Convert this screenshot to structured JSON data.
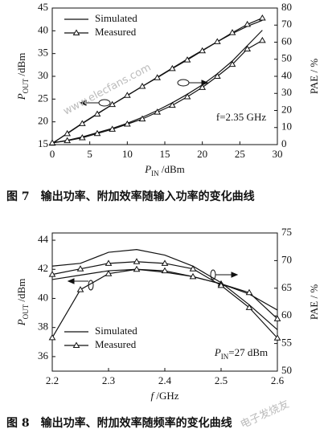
{
  "chart_data": [
    {
      "type": "line",
      "caption": "图 7　输出功率、附加效率随输入功率的变化曲线",
      "x_label": [
        "P",
        "IN",
        " /dBm"
      ],
      "y_label": [
        "P",
        "OUT",
        " /dBm"
      ],
      "y2_label": "PAE / %",
      "annotation": "f=2.35 GHz",
      "legend": "upper left",
      "xlim": [
        0,
        30
      ],
      "xticks": [
        0,
        5,
        10,
        15,
        20,
        25,
        30
      ],
      "ylim": [
        15,
        45
      ],
      "yticks": [
        15,
        20,
        25,
        30,
        35,
        40,
        45
      ],
      "y2lim": [
        0,
        80
      ],
      "y2ticks": [
        0,
        10,
        20,
        30,
        40,
        50,
        60,
        70,
        80
      ],
      "x": [
        0,
        2,
        4,
        6,
        8,
        10,
        12,
        14,
        16,
        18,
        20,
        22,
        24,
        26,
        28
      ],
      "series": [
        {
          "name": "Simulated",
          "color": "#111111",
          "marker": "none",
          "values": [
            15.2,
            17.5,
            19.7,
            21.8,
            23.8,
            25.8,
            27.8,
            29.8,
            31.8,
            33.8,
            35.7,
            37.6,
            39.4,
            41,
            42.3
          ]
        },
        {
          "name": "Measured",
          "color": "#111111",
          "marker": "triangle",
          "values": [
            15.3,
            17.4,
            19.6,
            21.7,
            23.8,
            25.8,
            27.8,
            29.7,
            31.7,
            33.6,
            35.6,
            37.6,
            39.6,
            41.4,
            42.8
          ]
        },
        {
          "color": "#111111",
          "marker": "none",
          "axis": "y2",
          "values": [
            1,
            2.5,
            4.5,
            7,
            9.5,
            12.5,
            16,
            20,
            24.5,
            29.5,
            35,
            41.5,
            49,
            58,
            67
          ]
        },
        {
          "color": "#111111",
          "marker": "triangle",
          "axis": "y2",
          "values": [
            1,
            2.3,
            4,
            6.5,
            9,
            12,
            15,
            19,
            23,
            28,
            33.5,
            40,
            47,
            56,
            61
          ]
        }
      ]
    },
    {
      "type": "line",
      "caption": "图 8　输出功率、附加效率随频率的变化曲线",
      "x_label": [
        "f",
        "",
        " /GHz"
      ],
      "y_label": [
        "P",
        "OUT",
        " /dBm"
      ],
      "y2_label": "PAE / %",
      "annotation": [
        "P",
        "IN",
        "=27 dBm"
      ],
      "legend": "lower left",
      "xlim": [
        2.2,
        2.6
      ],
      "xticks": [
        2.2,
        2.3,
        2.4,
        2.5,
        2.6
      ],
      "ylim": [
        35,
        44.5
      ],
      "yticks": [
        36,
        38,
        40,
        42,
        44
      ],
      "y2lim": [
        50,
        75
      ],
      "y2ticks": [
        50,
        55,
        60,
        65,
        70,
        75
      ],
      "x": [
        2.2,
        2.25,
        2.3,
        2.35,
        2.4,
        2.45,
        2.5,
        2.55,
        2.6
      ],
      "series": [
        {
          "name": "Simulated",
          "color": "#111111",
          "marker": "none",
          "values": [
            41.3,
            41.6,
            41.9,
            42,
            41.8,
            41.5,
            41,
            40.3,
            39.2
          ]
        },
        {
          "name": "Measured",
          "color": "#111111",
          "marker": "triangle",
          "values": [
            37.3,
            40.6,
            41.7,
            42,
            41.9,
            41.5,
            41,
            40.4,
            38.6
          ]
        },
        {
          "color": "#111111",
          "marker": "none",
          "axis": "y2",
          "values": [
            69,
            69.5,
            71.5,
            72,
            71,
            69,
            66,
            62,
            57.5
          ]
        },
        {
          "color": "#111111",
          "marker": "triangle",
          "axis": "y2",
          "values": [
            67.5,
            68.5,
            69.5,
            69.8,
            69.5,
            68.5,
            65.5,
            61.5,
            56
          ]
        }
      ]
    }
  ],
  "watermarks": [
    "www.elecfans.com",
    "电子发烧友"
  ]
}
